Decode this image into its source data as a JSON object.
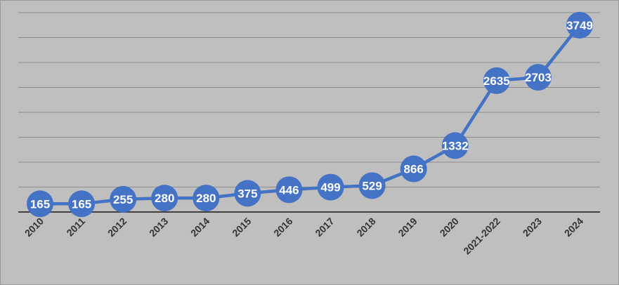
{
  "chart_data": {
    "type": "line",
    "title": "",
    "xlabel": "",
    "ylabel": "",
    "categories": [
      "2010",
      "2011",
      "2012",
      "2013",
      "2014",
      "2015",
      "2016",
      "2017",
      "2018",
      "2019",
      "2020",
      "2021-2022",
      "2023",
      "2024"
    ],
    "series": [
      {
        "values": [
          165,
          165,
          255,
          280,
          280,
          375,
          446,
          499,
          529,
          866,
          1332,
          2635,
          2703,
          3749
        ]
      }
    ],
    "data_labels": true,
    "ylim": [
      0,
      4000
    ],
    "y_gridline_step": 500,
    "grid": true,
    "legend": "none",
    "colors": {
      "line": "#4472c4",
      "marker": "#4472c4",
      "label": "#ffffff",
      "background": "#bfbfbf",
      "gridline": "#8c8c8c",
      "axis": "#404040",
      "tick_text": "#333333"
    }
  }
}
